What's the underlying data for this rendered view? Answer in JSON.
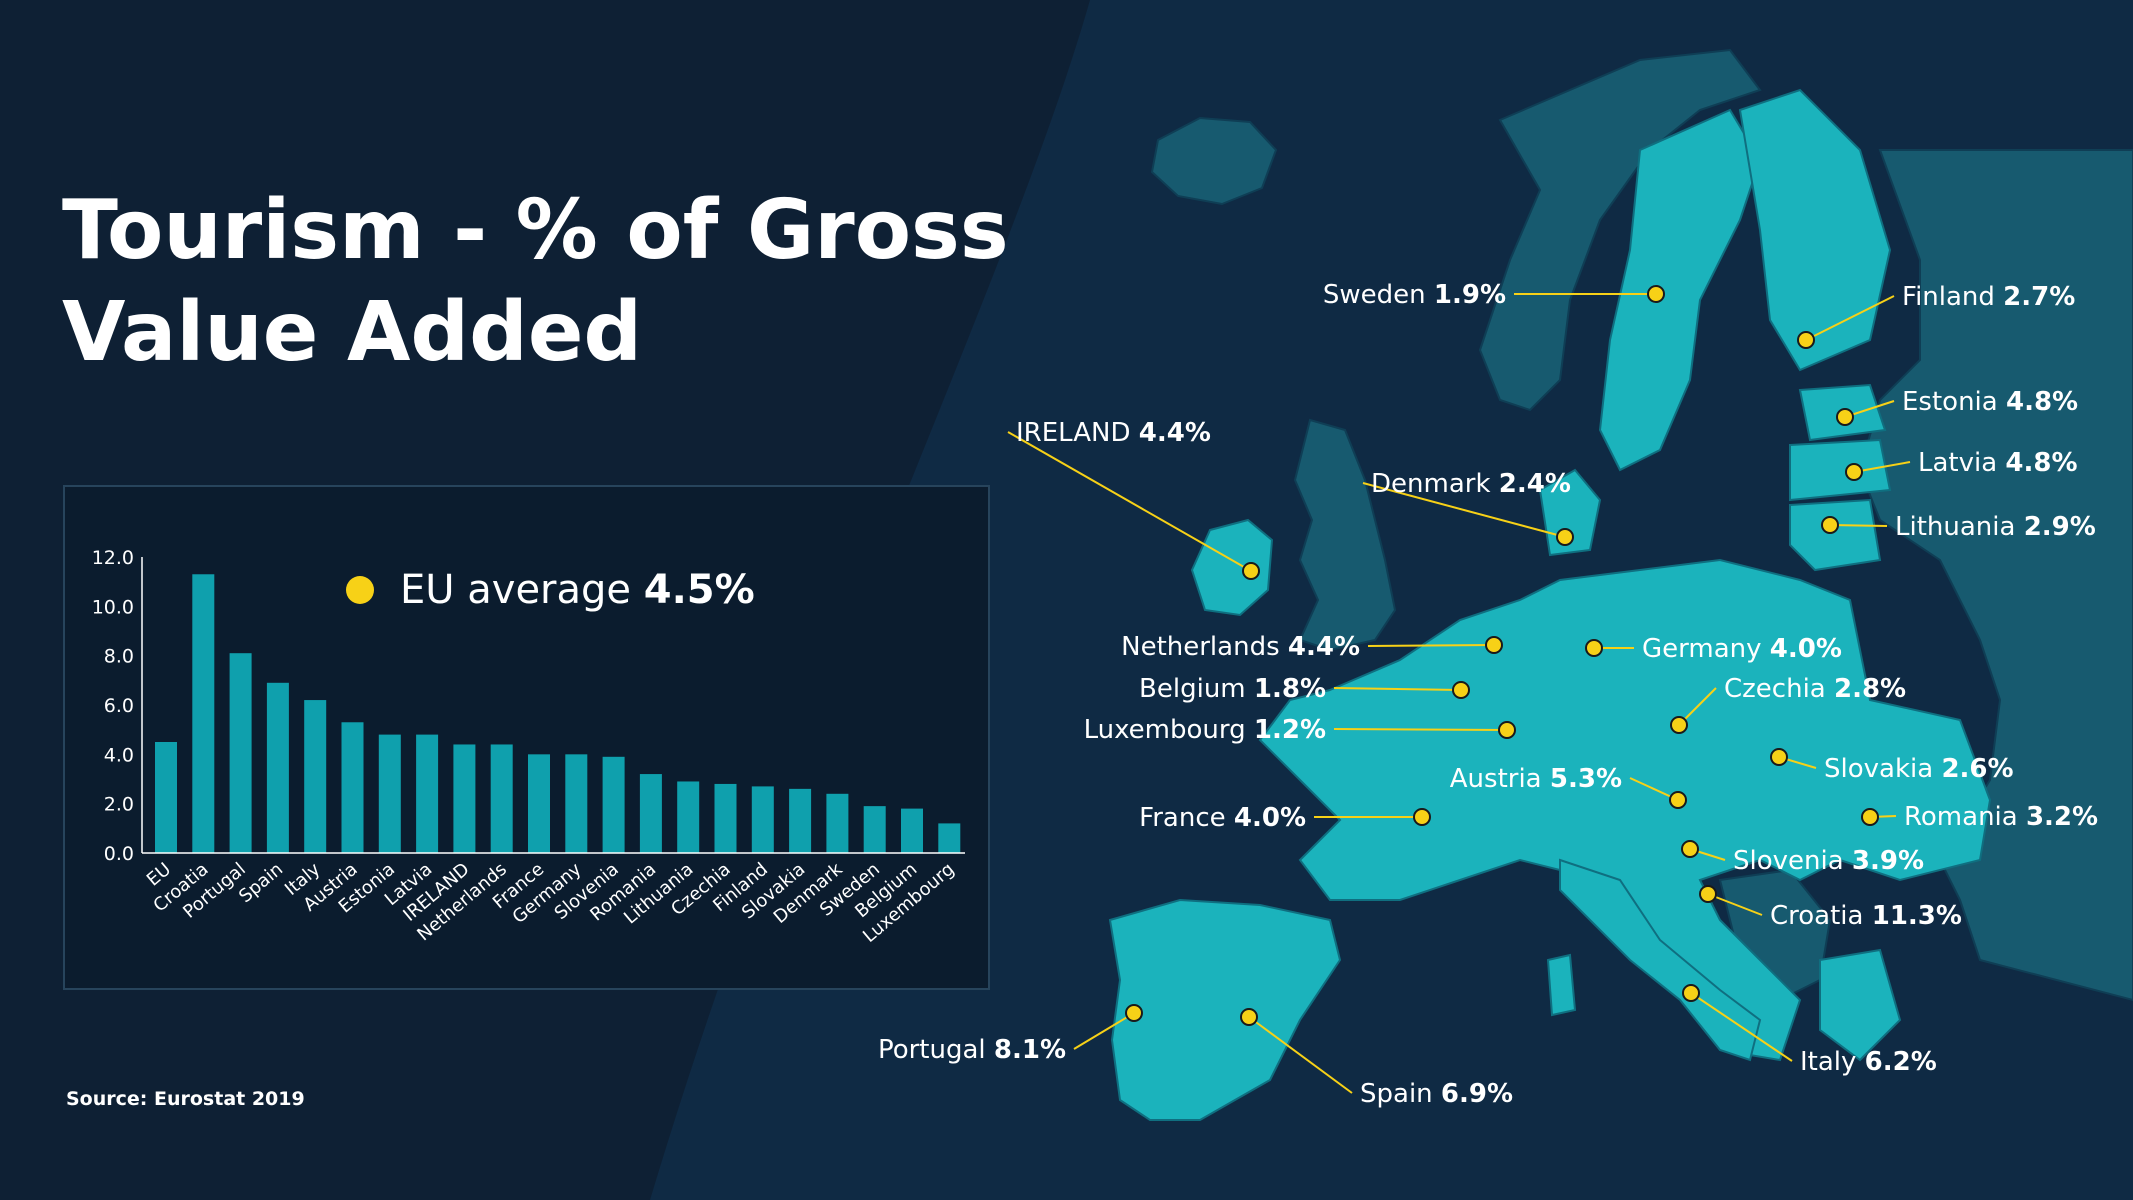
{
  "title": {
    "line1": "Tourism - % of Gross",
    "line2": "Value Added"
  },
  "source": "Source: Eurostat 2019",
  "legend": {
    "text": "EU average",
    "value": "4.5%"
  },
  "colors": {
    "background": "#0e2034",
    "bar": "#0fa0ad",
    "marker": "#f7d117",
    "land_highlight": "#1bb3bc",
    "land_other": "#175a6f"
  },
  "chart_data": {
    "type": "bar",
    "categories": [
      "EU",
      "Croatia",
      "Portugal",
      "Spain",
      "Italy",
      "Austria",
      "Estonia",
      "Latvia",
      "IRELAND",
      "Netherlands",
      "France",
      "Germany",
      "Slovenia",
      "Romania",
      "Lithuania",
      "Czechia",
      "Finland",
      "Slovakia",
      "Denmark",
      "Sweden",
      "Belgium",
      "Luxembourg"
    ],
    "values": [
      4.5,
      11.3,
      8.1,
      6.9,
      6.2,
      5.3,
      4.8,
      4.8,
      4.4,
      4.4,
      4.0,
      4.0,
      3.9,
      3.2,
      2.9,
      2.8,
      2.7,
      2.6,
      2.4,
      1.9,
      1.8,
      1.2
    ],
    "ylim": [
      0,
      12
    ],
    "yticks": [
      "0.0",
      "2.0",
      "4.0",
      "6.0",
      "8.0",
      "10.0",
      "12.0"
    ],
    "grid": false
  },
  "map_labels": [
    {
      "name": "Sweden",
      "value": "1.9%"
    },
    {
      "name": "Finland",
      "value": "2.7%"
    },
    {
      "name": "Estonia",
      "value": "4.8%"
    },
    {
      "name": "Latvia",
      "value": "4.8%"
    },
    {
      "name": "Lithuania",
      "value": "2.9%"
    },
    {
      "name": "IRELAND",
      "value": "4.4%"
    },
    {
      "name": "Denmark",
      "value": "2.4%"
    },
    {
      "name": "Netherlands",
      "value": "4.4%"
    },
    {
      "name": "Germany",
      "value": "4.0%"
    },
    {
      "name": "Belgium",
      "value": "1.8%"
    },
    {
      "name": "Czechia",
      "value": "2.8%"
    },
    {
      "name": "Luxembourg",
      "value": "1.2%"
    },
    {
      "name": "Slovakia",
      "value": "2.6%"
    },
    {
      "name": "Austria",
      "value": "5.3%"
    },
    {
      "name": "Romania",
      "value": "3.2%"
    },
    {
      "name": "France",
      "value": "4.0%"
    },
    {
      "name": "Slovenia",
      "value": "3.9%"
    },
    {
      "name": "Croatia",
      "value": "11.3%"
    },
    {
      "name": "Portugal",
      "value": "8.1%"
    },
    {
      "name": "Spain",
      "value": "6.9%"
    },
    {
      "name": "Italy",
      "value": "6.2%"
    }
  ]
}
